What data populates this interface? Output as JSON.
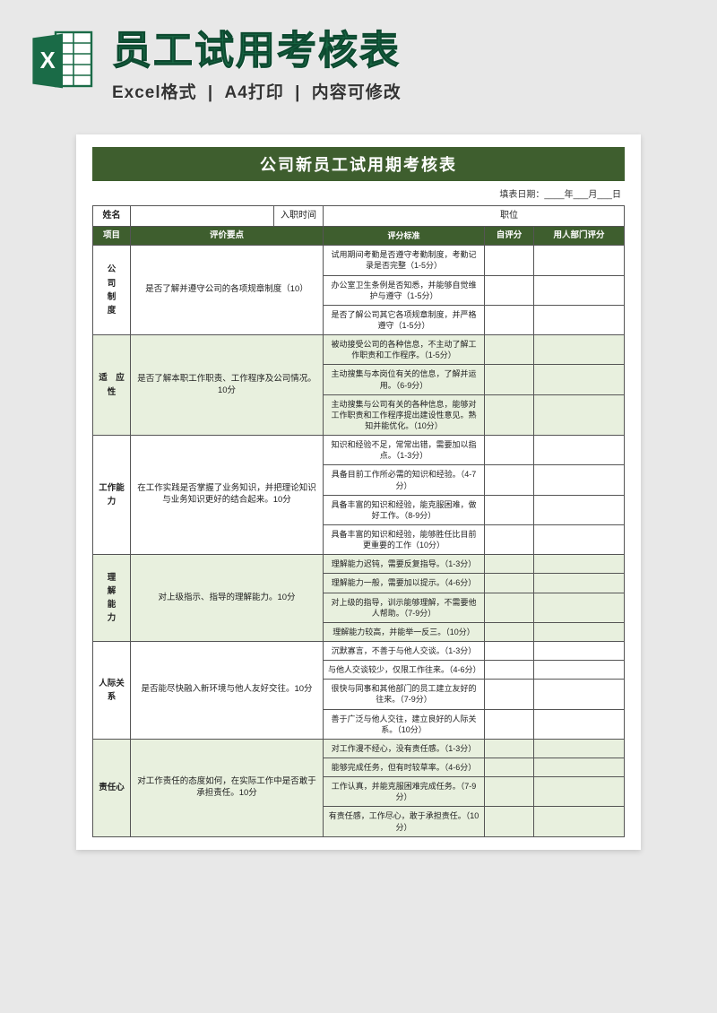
{
  "header": {
    "title": "员工试用考核表",
    "subtitle_parts": [
      "Excel格式",
      "A4打印",
      "内容可修改"
    ],
    "divider": " | "
  },
  "doc": {
    "title": "公司新员工试用期考核表",
    "date_label": "填表日期：",
    "date_year": "年",
    "date_month": "月",
    "date_day": "日",
    "info_labels": {
      "name": "姓名",
      "entry": "入职时间",
      "position": "职位"
    },
    "columns": {
      "c1": "项目",
      "c2": "评价要点",
      "c3": "评分标准",
      "c4": "自评分",
      "c5": "用人部门评分"
    },
    "sections": [
      {
        "cat": "公\n司\n制\n度",
        "eval": "是否了解并遵守公司的各项规章制度（10）",
        "alt": false,
        "criteria": [
          "试用期间考勤是否遵守考勤制度，考勤记录是否完整（1-5分）",
          "办公室卫生条例是否知悉，并能够自觉维护与遵守（1-5分）",
          "是否了解公司其它各项规章制度，并严格遵守（1-5分）"
        ]
      },
      {
        "cat": "适　应　性",
        "eval": "是否了解本职工作职责、工作程序及公司情况。10分",
        "alt": true,
        "criteria": [
          "被动接受公司的各种信息，不主动了解工作职责和工作程序。（1-5分）",
          "主动搜集与本岗位有关的信息，了解并运用。（6-9分）",
          "主动搜集与公司有关的各种信息，能够对工作职责和工作程序提出建设性意见。熟知并能优化。（10分）"
        ]
      },
      {
        "cat": "工作能力",
        "eval": "在工作实践是否掌握了业务知识，并把理论知识与业务知识更好的结合起来。10分",
        "alt": false,
        "criteria": [
          "知识和经验不足，常常出错，需要加以指点。（1-3分）",
          "具备目前工作所必需的知识和经验。（4-7分）",
          "具备丰富的知识和经验，能克服困难，做好工作。（8-9分）",
          "具备丰富的知识和经验，能够胜任比目前更重要的工作（10分）"
        ]
      },
      {
        "cat": "理\n解\n能\n力",
        "eval": "对上级指示、指导的理解能力。10分",
        "alt": true,
        "criteria": [
          "理解能力迟钝，需要反复指导。（1-3分）",
          "理解能力一般，需要加以提示。（4-6分）",
          "对上级的指导，训示能够理解，不需要他人帮助。（7-9分）",
          "理解能力较高，并能举一反三。（10分）"
        ]
      },
      {
        "cat": "人际关系",
        "eval": "是否能尽快融入新环境与他人友好交往。10分",
        "alt": false,
        "criteria": [
          "沉默寡言，不善于与他人交谈。（1-3分）",
          "与他人交谈较少，仅限工作往来。（4-6分）",
          "很快与同事和其他部门的员工建立友好的往来。（7-9分）",
          "善于广泛与他人交往，建立良好的人际关系。（10分）"
        ]
      },
      {
        "cat": "责任心",
        "eval": "对工作责任的态度如何，在实际工作中是否敢于承担责任。10分",
        "alt": true,
        "criteria": [
          "对工作漫不经心，没有责任感。（1-3分）",
          "能够完成任务，但有时较草率。（4-6分）",
          "工作认真，并能克服困难完成任务。（7-9分）",
          "有责任感，工作尽心，敢于承担责任。（10分）"
        ]
      }
    ]
  }
}
